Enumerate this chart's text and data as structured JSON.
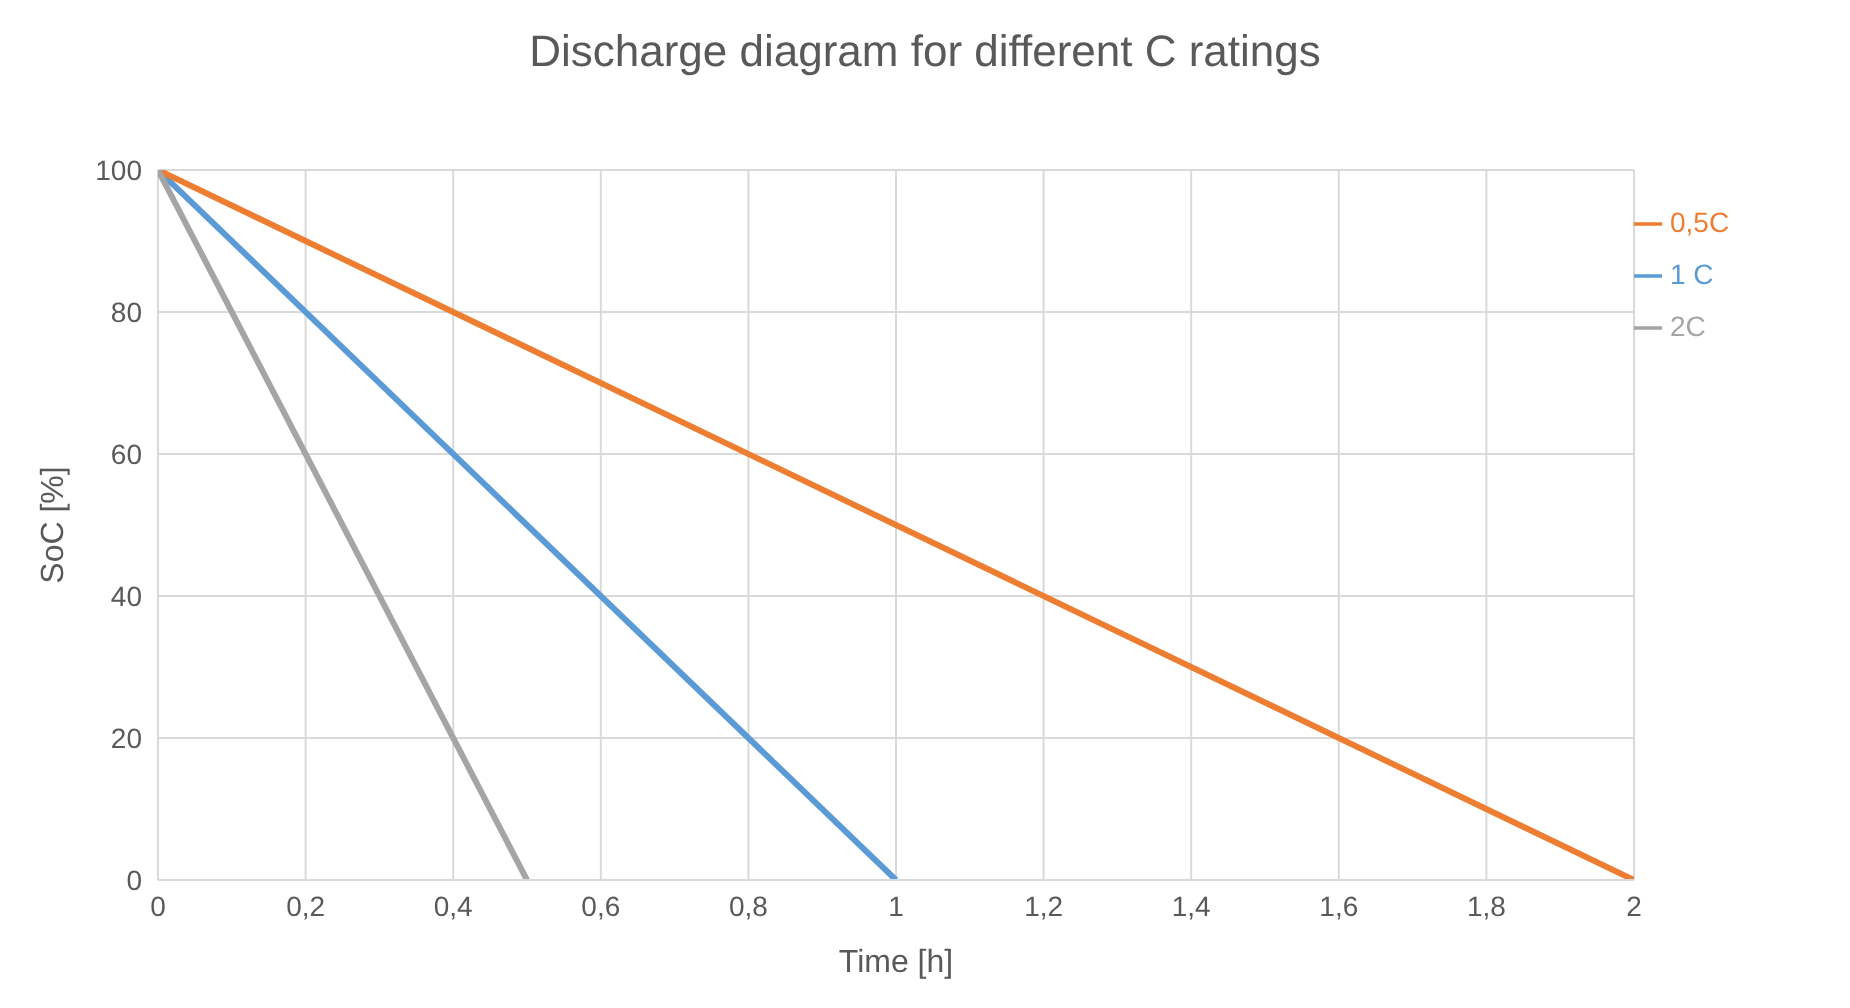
{
  "chart_data": {
    "type": "line",
    "title": "Discharge diagram for different C ratings",
    "xlabel": "Time [h]",
    "ylabel": "SoC [%]",
    "series": [
      {
        "name": "1 C",
        "color": "#5b9bd5",
        "x": [
          0,
          1
        ],
        "values": [
          100,
          0
        ]
      },
      {
        "name": "0,5C",
        "color": "#ed7d31",
        "x": [
          0,
          2
        ],
        "values": [
          100,
          0
        ]
      },
      {
        "name": "2C",
        "color": "#a5a5a5",
        "x": [
          0,
          0.5
        ],
        "values": [
          100,
          0
        ]
      }
    ],
    "xlim": [
      0,
      2
    ],
    "xticks": [
      0,
      {
        "value": 0.2,
        "label": "0,2"
      },
      {
        "value": 0.4,
        "label": "0,4"
      },
      {
        "value": 0.6,
        "label": "0,6"
      },
      {
        "value": 0.8,
        "label": "0,8"
      },
      1,
      {
        "value": 1.2,
        "label": "1,2"
      },
      {
        "value": 1.4,
        "label": "1,4"
      },
      {
        "value": 1.6,
        "label": "1,6"
      },
      {
        "value": 1.8,
        "label": "1,8"
      },
      2
    ],
    "ylim": [
      0,
      100
    ],
    "yticks": [
      0,
      20,
      40,
      60,
      80,
      100
    ],
    "grid": true,
    "legend": "right",
    "marker": "none",
    "line_style": "solid"
  }
}
